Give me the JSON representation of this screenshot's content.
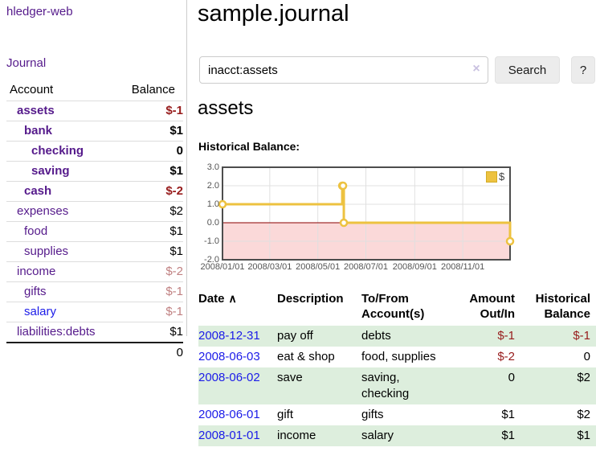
{
  "app": {
    "brand": "hledger-web",
    "nav_journal": "Journal"
  },
  "sidebar": {
    "accounts_header": {
      "account": "Account",
      "balance": "Balance"
    },
    "accounts": [
      {
        "name": "assets",
        "indent": 0,
        "bold": true,
        "balance": "$-1",
        "balance_style": "neg"
      },
      {
        "name": "bank",
        "indent": 1,
        "bold": true,
        "balance": "$1",
        "balance_style": "pos"
      },
      {
        "name": "checking",
        "indent": 2,
        "bold": true,
        "balance": "0",
        "balance_style": "pos"
      },
      {
        "name": "saving",
        "indent": 2,
        "bold": true,
        "balance": "$1",
        "balance_style": "pos"
      },
      {
        "name": "cash",
        "indent": 1,
        "bold": true,
        "balance": "$-2",
        "balance_style": "neg"
      },
      {
        "name": "expenses",
        "indent": 0,
        "bold": false,
        "balance": "$2",
        "balance_style": "pos"
      },
      {
        "name": "food",
        "indent": 1,
        "bold": false,
        "balance": "$1",
        "balance_style": "pos"
      },
      {
        "name": "supplies",
        "indent": 1,
        "bold": false,
        "balance": "$1",
        "balance_style": "pos"
      },
      {
        "name": "income",
        "indent": 0,
        "bold": false,
        "balance": "$-2",
        "balance_style": "soft"
      },
      {
        "name": "gifts",
        "indent": 1,
        "bold": false,
        "balance": "$-1",
        "balance_style": "soft"
      },
      {
        "name": "salary",
        "indent": 1,
        "bold": false,
        "balance": "$-1",
        "balance_style": "soft",
        "link_color": "blue"
      },
      {
        "name": "liabilities:debts",
        "indent": 0,
        "bold": false,
        "balance": "$1",
        "balance_style": "pos"
      }
    ],
    "total": "0"
  },
  "main": {
    "title": "sample.journal",
    "search": {
      "value": "inacct:assets",
      "clear_icon": "×",
      "button_label": "Search",
      "help_label": "?"
    },
    "account_heading": "assets",
    "chart_label": "Historical Balance:"
  },
  "chart_data": {
    "type": "line",
    "title": "Historical Balance:",
    "step": true,
    "markers": true,
    "series": [
      {
        "name": "$",
        "color": "#edc240",
        "points": [
          [
            "2008-01-01",
            1
          ],
          [
            "2008-06-01",
            2
          ],
          [
            "2008-06-02",
            2
          ],
          [
            "2008-06-03",
            0
          ],
          [
            "2008-12-31",
            -1
          ]
        ]
      }
    ],
    "x_range": [
      "2008-01-01",
      "2008-12-31"
    ],
    "x_ticks": [
      {
        "date": "2008-01-01",
        "label": "2008/01/01"
      },
      {
        "date": "2008-03-01",
        "label": "2008/03/01"
      },
      {
        "date": "2008-05-01",
        "label": "2008/05/01"
      },
      {
        "date": "2008-07-01",
        "label": "2008/07/01"
      },
      {
        "date": "2008-09-01",
        "label": "2008/09/01"
      },
      {
        "date": "2008-11-01",
        "label": "2008/11/01"
      }
    ],
    "y_ticks": [
      3.0,
      2.0,
      1.0,
      0.0,
      -1.0,
      -2.0
    ],
    "ylim": [
      -2,
      3
    ],
    "grid": true,
    "legend_position": "top-right",
    "negative_region_color": "#fbd9d9",
    "zero_line_color": "#8b0000",
    "grid_color": "#e0e0e0",
    "border_color": "#4d4d4d"
  },
  "register": {
    "sort_indicator": "∧",
    "columns": [
      {
        "lines": [
          "Date"
        ],
        "align": "left",
        "sortable": true
      },
      {
        "lines": [
          "Description"
        ],
        "align": "left",
        "sortable": false
      },
      {
        "lines": [
          "To/From",
          "Account(s)"
        ],
        "align": "left",
        "sortable": false
      },
      {
        "lines": [
          "Amount",
          "Out/In"
        ],
        "align": "right",
        "sortable": false
      },
      {
        "lines": [
          "Historical",
          "Balance"
        ],
        "align": "right",
        "sortable": false
      }
    ],
    "rows": [
      {
        "date": "2008-12-31",
        "description": "pay off",
        "accounts_lines": [
          "debts"
        ],
        "amount": "$-1",
        "amount_style": "neg",
        "balance": "$-1",
        "balance_style": "neg",
        "shaded": true
      },
      {
        "date": "2008-06-03",
        "description": "eat & shop",
        "accounts_lines": [
          "food, supplies"
        ],
        "amount": "$-2",
        "amount_style": "neg",
        "balance": "0",
        "balance_style": "pos",
        "shaded": false
      },
      {
        "date": "2008-06-02",
        "description": "save",
        "accounts_lines": [
          "saving,",
          "checking"
        ],
        "amount": "0",
        "amount_style": "pos",
        "balance": "$2",
        "balance_style": "pos",
        "shaded": true
      },
      {
        "date": "2008-06-01",
        "description": "gift",
        "accounts_lines": [
          "gifts"
        ],
        "amount": "$1",
        "amount_style": "pos",
        "balance": "$2",
        "balance_style": "pos",
        "shaded": false
      },
      {
        "date": "2008-01-01",
        "description": "income",
        "accounts_lines": [
          "salary"
        ],
        "amount": "$1",
        "amount_style": "pos",
        "balance": "$1",
        "balance_style": "pos",
        "shaded": true
      }
    ]
  }
}
